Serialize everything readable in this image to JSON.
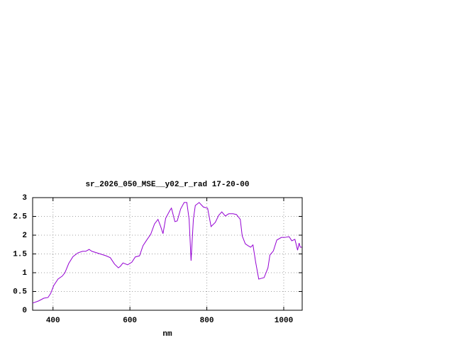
{
  "chart_data": {
    "type": "line",
    "title": "sr_2026_050_MSE__y02_r_rad 17-20-00",
    "x_label": "nm",
    "x": [
      347,
      363,
      376,
      387,
      394,
      402,
      413,
      424,
      431,
      441,
      452,
      465,
      477,
      485,
      494,
      501,
      520,
      538,
      549,
      560,
      570,
      575,
      582,
      594,
      605,
      614,
      625,
      634,
      645,
      654,
      664,
      673,
      680,
      686,
      693,
      704,
      708,
      717,
      723,
      732,
      741,
      748,
      754,
      759,
      765,
      770,
      780,
      791,
      802,
      811,
      822,
      831,
      839,
      848,
      857,
      868,
      877,
      887,
      892,
      900,
      907,
      914,
      920,
      927,
      935,
      942,
      949,
      959,
      964,
      973,
      982,
      994,
      1003,
      1014,
      1021,
      1029,
      1032,
      1036,
      1040,
      1043,
      1047
    ],
    "series": [
      {
        "color": "#9400d3",
        "values": [
          0.19,
          0.25,
          0.32,
          0.34,
          0.45,
          0.66,
          0.83,
          0.91,
          1.0,
          1.25,
          1.43,
          1.53,
          1.57,
          1.57,
          1.62,
          1.57,
          1.51,
          1.45,
          1.4,
          1.23,
          1.13,
          1.17,
          1.26,
          1.21,
          1.28,
          1.42,
          1.45,
          1.72,
          1.89,
          2.02,
          2.3,
          2.42,
          2.23,
          2.04,
          2.45,
          2.66,
          2.72,
          2.36,
          2.38,
          2.7,
          2.87,
          2.87,
          2.42,
          1.32,
          2.42,
          2.79,
          2.87,
          2.75,
          2.72,
          2.23,
          2.34,
          2.53,
          2.62,
          2.51,
          2.57,
          2.57,
          2.55,
          2.42,
          1.98,
          1.77,
          1.72,
          1.68,
          1.74,
          1.28,
          0.83,
          0.85,
          0.87,
          1.13,
          1.47,
          1.58,
          1.87,
          1.94,
          1.94,
          1.96,
          1.85,
          1.89,
          1.77,
          1.6,
          1.79,
          1.68,
          1.68
        ]
      }
    ],
    "xlim": [
      347,
      1048
    ],
    "ylim": [
      0,
      3
    ],
    "xticks": [
      400,
      600,
      800,
      1000
    ],
    "yticks": [
      0,
      0.5,
      1,
      1.5,
      2,
      2.5,
      3
    ],
    "grid": true
  }
}
